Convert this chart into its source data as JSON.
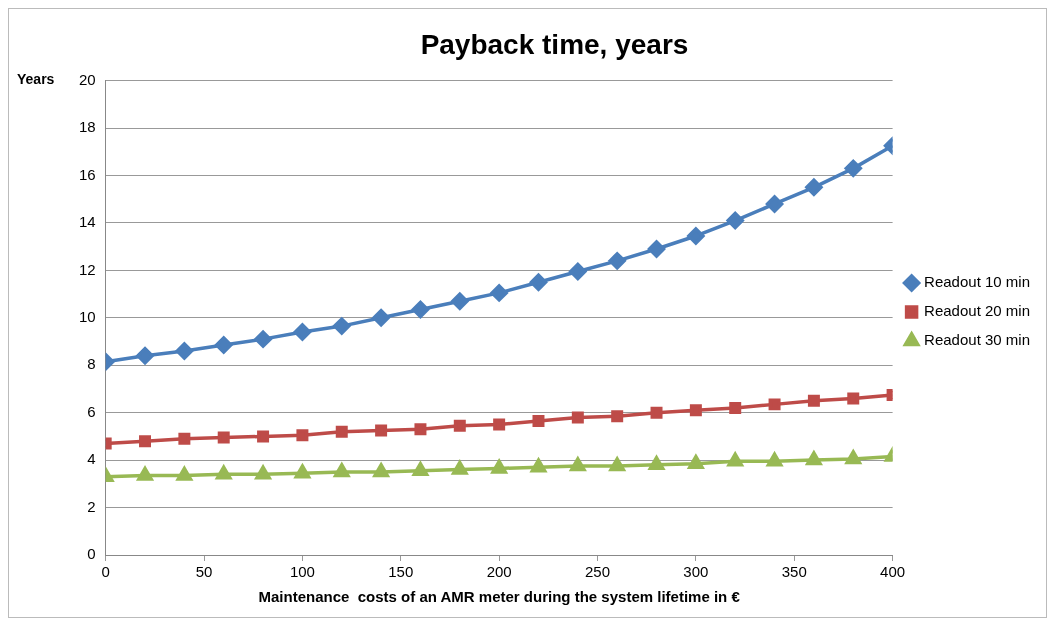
{
  "chart_data": {
    "type": "line",
    "title": "Payback time, years",
    "xlabel": "Maintenance  costs of an AMR meter during the system lifetime in €",
    "ylabel": "Years",
    "x": [
      0,
      20,
      40,
      60,
      80,
      100,
      120,
      140,
      160,
      180,
      200,
      220,
      240,
      260,
      280,
      300,
      320,
      340,
      360,
      380,
      400
    ],
    "series": [
      {
        "name": "Readout 10 min",
        "color": "#4a7ebb",
        "marker": "diamond",
        "values": [
          8.15,
          8.4,
          8.6,
          8.85,
          9.1,
          9.4,
          9.65,
          10.0,
          10.35,
          10.7,
          11.05,
          11.5,
          11.95,
          12.4,
          12.9,
          13.45,
          14.1,
          14.8,
          15.5,
          16.3,
          17.25
        ]
      },
      {
        "name": "Readout 20 min",
        "color": "#be4b48",
        "marker": "square",
        "values": [
          4.7,
          4.8,
          4.9,
          4.95,
          5.0,
          5.05,
          5.2,
          5.25,
          5.3,
          5.45,
          5.5,
          5.65,
          5.8,
          5.85,
          6.0,
          6.1,
          6.2,
          6.35,
          6.5,
          6.6,
          6.75
        ]
      },
      {
        "name": "Readout 30 min",
        "color": "#98b954",
        "marker": "triangle",
        "values": [
          3.3,
          3.35,
          3.35,
          3.4,
          3.4,
          3.45,
          3.5,
          3.5,
          3.55,
          3.6,
          3.65,
          3.7,
          3.75,
          3.75,
          3.8,
          3.85,
          3.95,
          3.95,
          4.0,
          4.05,
          4.15
        ]
      }
    ],
    "xlim": [
      0,
      400
    ],
    "xticks": [
      0,
      50,
      100,
      150,
      200,
      250,
      300,
      350,
      400
    ],
    "ylim": [
      0,
      20
    ],
    "yticks": [
      0,
      2,
      4,
      6,
      8,
      10,
      12,
      14,
      16,
      18,
      20
    ],
    "grid": "y",
    "legend": "right",
    "line_style": "solid"
  }
}
